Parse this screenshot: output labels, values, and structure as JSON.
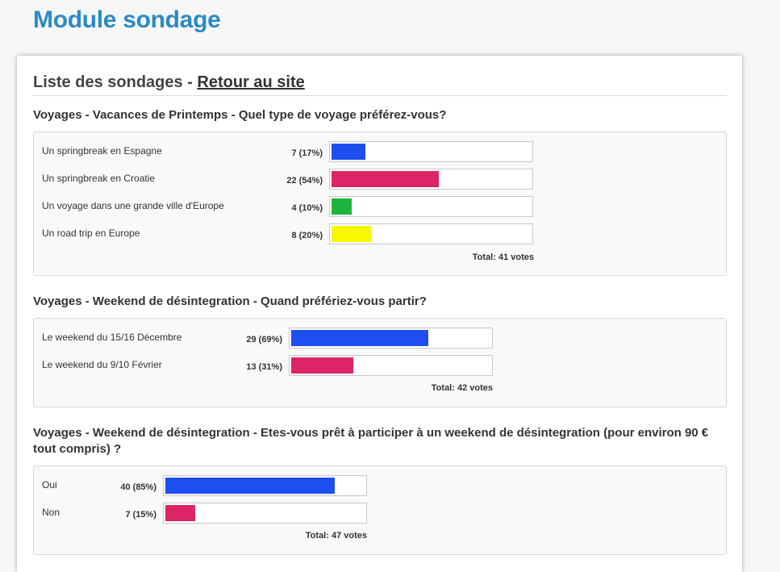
{
  "page": {
    "title": "Module sondage"
  },
  "list": {
    "title": "Liste des sondages - ",
    "back_link": "Retour au site"
  },
  "polls": [
    {
      "question": "Voyages - Vacances de Printemps - Quel type de voyage préférez-vous?",
      "total": "Total: 41 votes",
      "options": [
        {
          "label": "Un springbreak en Espagne",
          "count": "7 (17%)",
          "percent": 17,
          "color": "#1f4ef0"
        },
        {
          "label": "Un springbreak en Croatie",
          "count": "22 (54%)",
          "percent": 54,
          "color": "#dc2466"
        },
        {
          "label": "Un voyage dans une grande ville d'Europe",
          "count": "4 (10%)",
          "percent": 10,
          "color": "#1db43c"
        },
        {
          "label": "Un road trip en Europe",
          "count": "8 (20%)",
          "percent": 20,
          "color": "#f8f800"
        }
      ]
    },
    {
      "question": "Voyages - Weekend de désintegration - Quand préfériez-vous partir?",
      "total": "Total: 42 votes",
      "options": [
        {
          "label": "Le weekend du 15/16 Décembre",
          "count": "29 (69%)",
          "percent": 69,
          "color": "#1f4ef0"
        },
        {
          "label": "Le weekend du 9/10 Février",
          "count": "13 (31%)",
          "percent": 31,
          "color": "#dc2466"
        }
      ]
    },
    {
      "question": "Voyages - Weekend de désintegration - Etes-vous prêt à participer à un weekend de désintegration (pour environ 90 € tout compris) ?",
      "total": "Total: 47 votes",
      "options": [
        {
          "label": "Oui",
          "count": "40 (85%)",
          "percent": 85,
          "color": "#1f4ef0"
        },
        {
          "label": "Non",
          "count": "7 (15%)",
          "percent": 15,
          "color": "#dc2466"
        }
      ]
    }
  ]
}
